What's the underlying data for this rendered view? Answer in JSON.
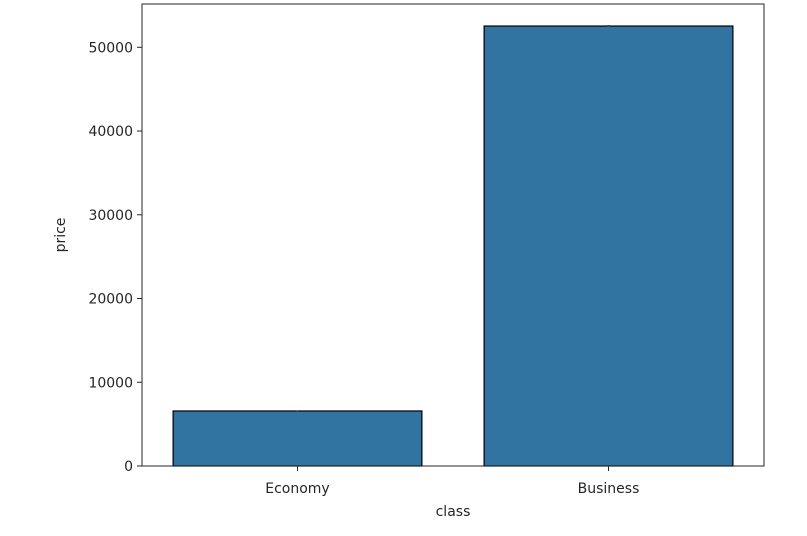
{
  "chart_data": {
    "type": "bar",
    "categories": [
      "Economy",
      "Business"
    ],
    "values": [
      6572,
      52540
    ],
    "error": [
      30,
      120
    ],
    "xlabel": "class",
    "ylabel": "price",
    "ylim": [
      0,
      55170
    ],
    "yticks": [
      0,
      10000,
      20000,
      30000,
      40000,
      50000
    ],
    "ytick_labels": [
      "0",
      "10000",
      "20000",
      "30000",
      "40000",
      "50000"
    ],
    "grid": false,
    "legend": "none",
    "bar_color": "#3274a1",
    "edge_color": "#000000"
  }
}
